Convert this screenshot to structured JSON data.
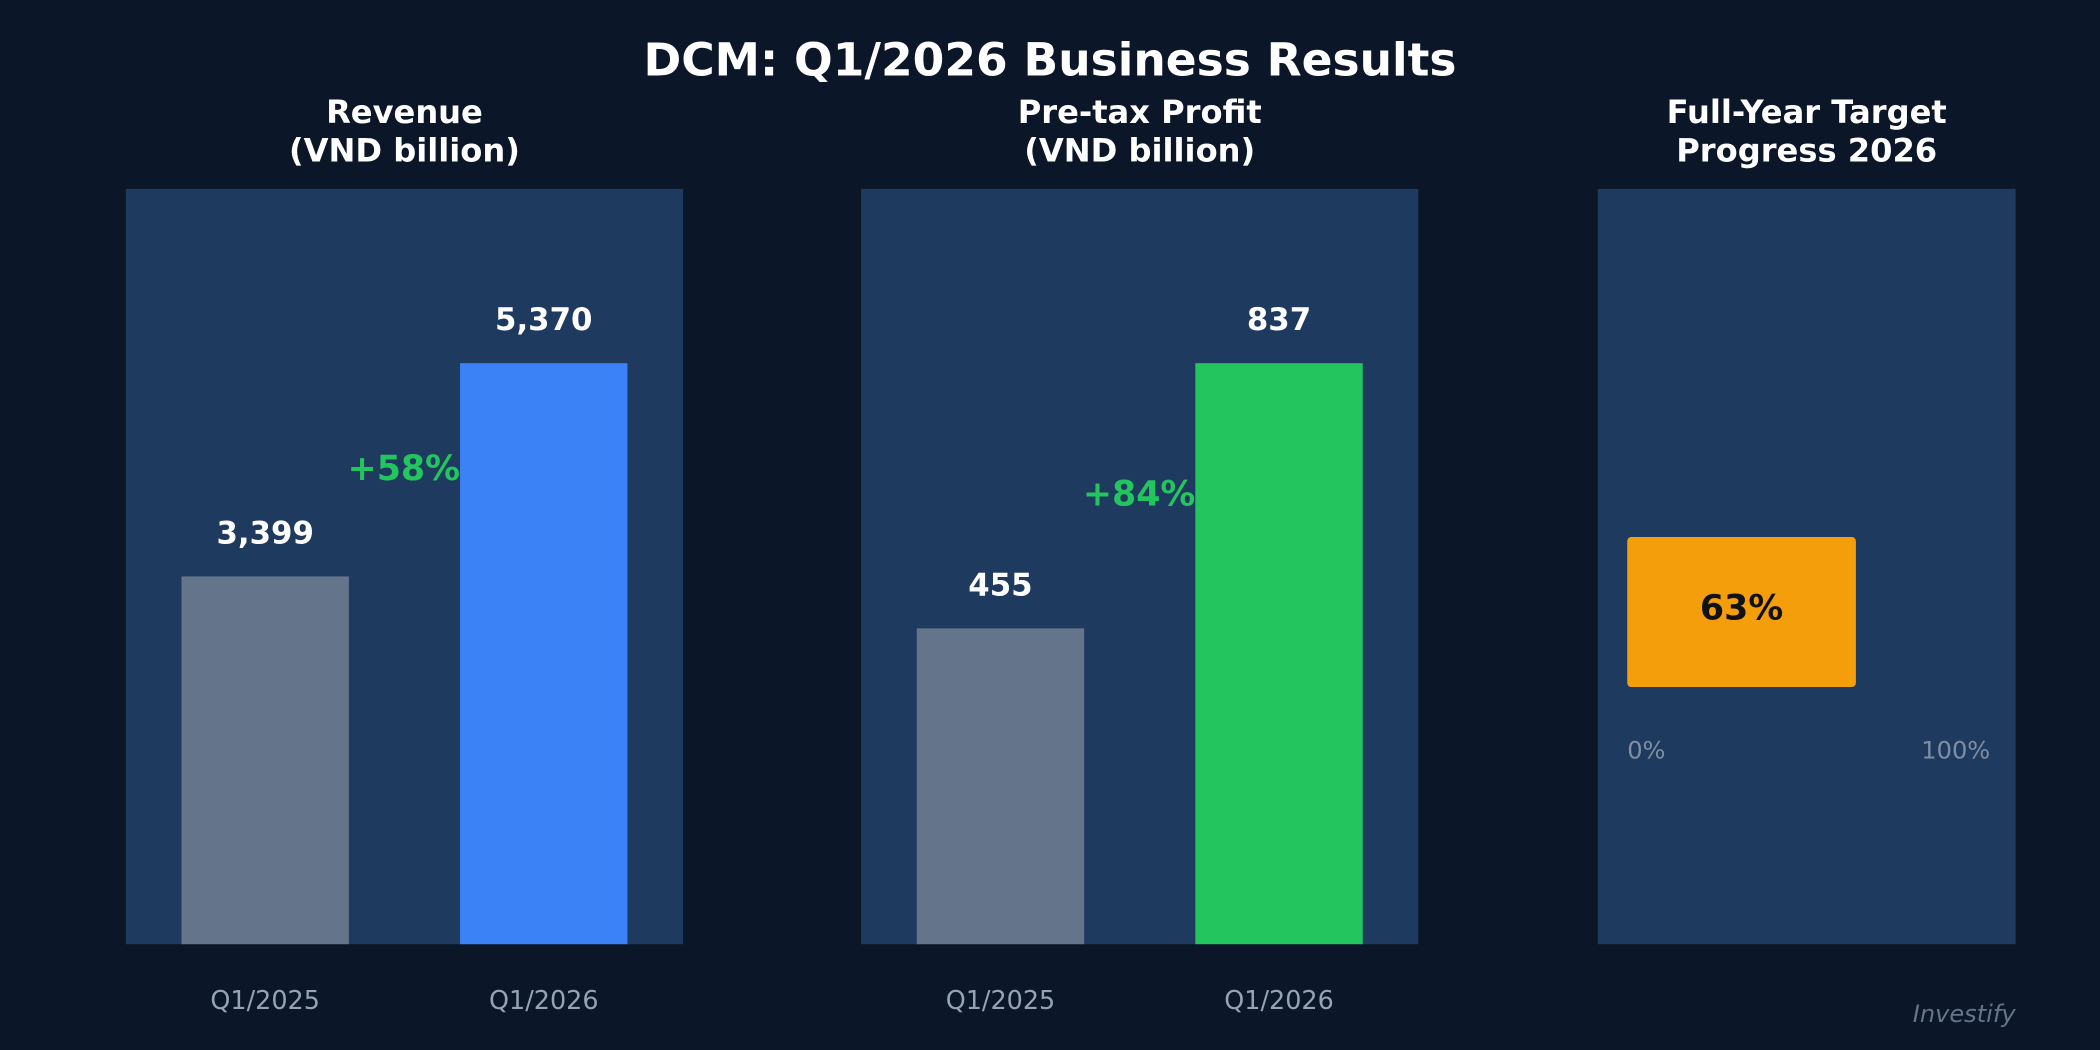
{
  "title": "DCM: Q1/2026 Business Results",
  "source": "Investify",
  "chart_data": [
    {
      "type": "bar",
      "title": [
        "Revenue",
        "(VND billion)"
      ],
      "categories": [
        "Q1/2025",
        "Q1/2026"
      ],
      "values": [
        3399,
        5370
      ],
      "value_labels": [
        "3,399",
        "5,370"
      ],
      "colors": [
        "#64748b",
        "#3b82f6"
      ],
      "ylim": [
        0,
        6981
      ],
      "grid": false,
      "annotation": "+58%",
      "annotation_color": "#22c55e"
    },
    {
      "type": "bar",
      "title": [
        "Pre-tax Profit",
        "(VND billion)"
      ],
      "categories": [
        "Q1/2025",
        "Q1/2026"
      ],
      "values": [
        455,
        837
      ],
      "value_labels": [
        "455",
        "837"
      ],
      "colors": [
        "#64748b",
        "#22c55e"
      ],
      "ylim": [
        0,
        1088.1
      ],
      "grid": false,
      "annotation": "+84%",
      "annotation_color": "#22c55e"
    },
    {
      "type": "progress",
      "title": [
        "Full-Year Target",
        "Progress 2026"
      ],
      "values": [
        63
      ],
      "value_labels": [
        "63%"
      ],
      "color": "#f59e0b",
      "xlim": [
        0,
        100
      ],
      "xticks": [
        {
          "value": 0,
          "label": "0%"
        },
        {
          "value": 100,
          "label": "100%"
        }
      ]
    }
  ]
}
